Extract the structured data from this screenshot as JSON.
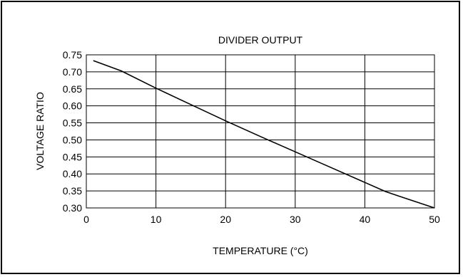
{
  "chart_data": {
    "type": "line",
    "title": "DIVIDER OUTPUT",
    "xlabel": "TEMPERATURE (°C)",
    "ylabel": "VOLTAGE RATIO",
    "xlim": [
      0,
      50
    ],
    "ylim": [
      0.3,
      0.75
    ],
    "x_ticks": [
      "0",
      "10",
      "20",
      "30",
      "40",
      "50"
    ],
    "y_ticks": [
      "0.75",
      "0.70",
      "0.65",
      "0.60",
      "0.55",
      "0.50",
      "0.45",
      "0.40",
      "0.35",
      "0.30"
    ],
    "grid": true,
    "series": [
      {
        "x": [
          1,
          5,
          10,
          15,
          20,
          25,
          30,
          35,
          40,
          43,
          45,
          50
        ],
        "y": [
          0.733,
          0.703,
          0.652,
          0.604,
          0.556,
          0.51,
          0.465,
          0.42,
          0.375,
          0.348,
          0.334,
          0.3
        ]
      }
    ]
  }
}
